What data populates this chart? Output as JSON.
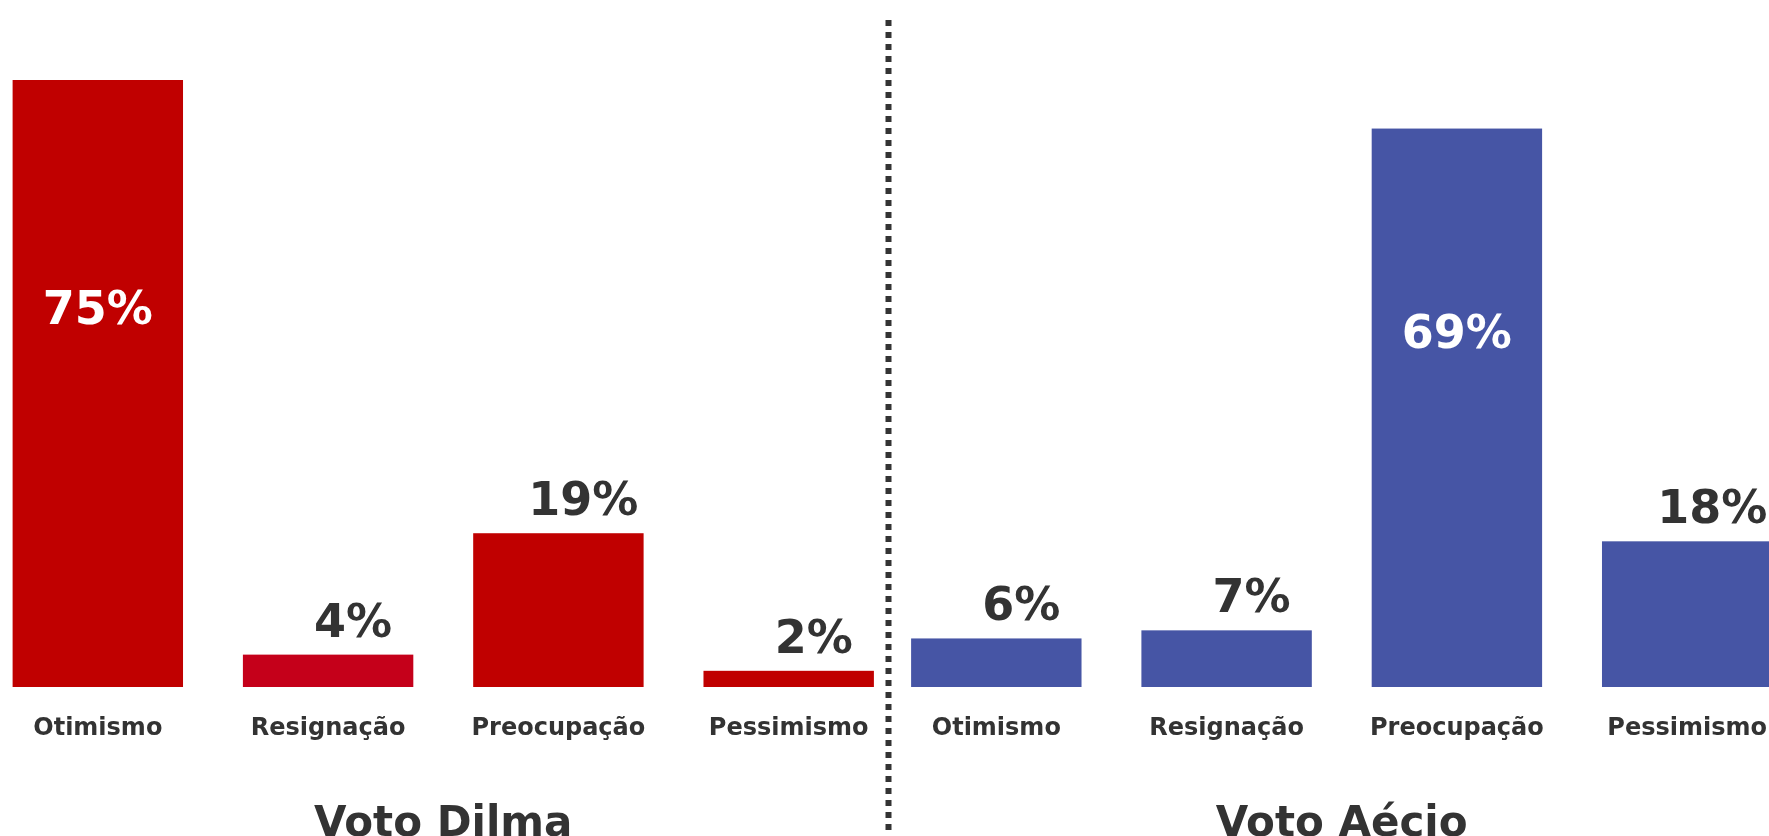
{
  "chart_data": [
    {
      "type": "bar",
      "title": "Voto Dilma",
      "categories": [
        "Otimismo",
        "Resignação",
        "Preocupação",
        "Pessimismo"
      ],
      "values": [
        75,
        4,
        19,
        2
      ],
      "colors": [
        "#c00000",
        "#c5001a",
        "#c00000",
        "#c00000"
      ],
      "value_labels": [
        "75%",
        "4%",
        "19%",
        "2%"
      ]
    },
    {
      "type": "bar",
      "title": "Voto Aécio",
      "categories": [
        "Otimismo",
        "Resignação",
        "Preocupação",
        "Pessimismo"
      ],
      "values": [
        6,
        7,
        69,
        18
      ],
      "colors": [
        "#4655a5",
        "#4655a5",
        "#4655a5",
        "#4655a5"
      ],
      "value_labels": [
        "6%",
        "7%",
        "69%",
        "18%"
      ]
    }
  ]
}
